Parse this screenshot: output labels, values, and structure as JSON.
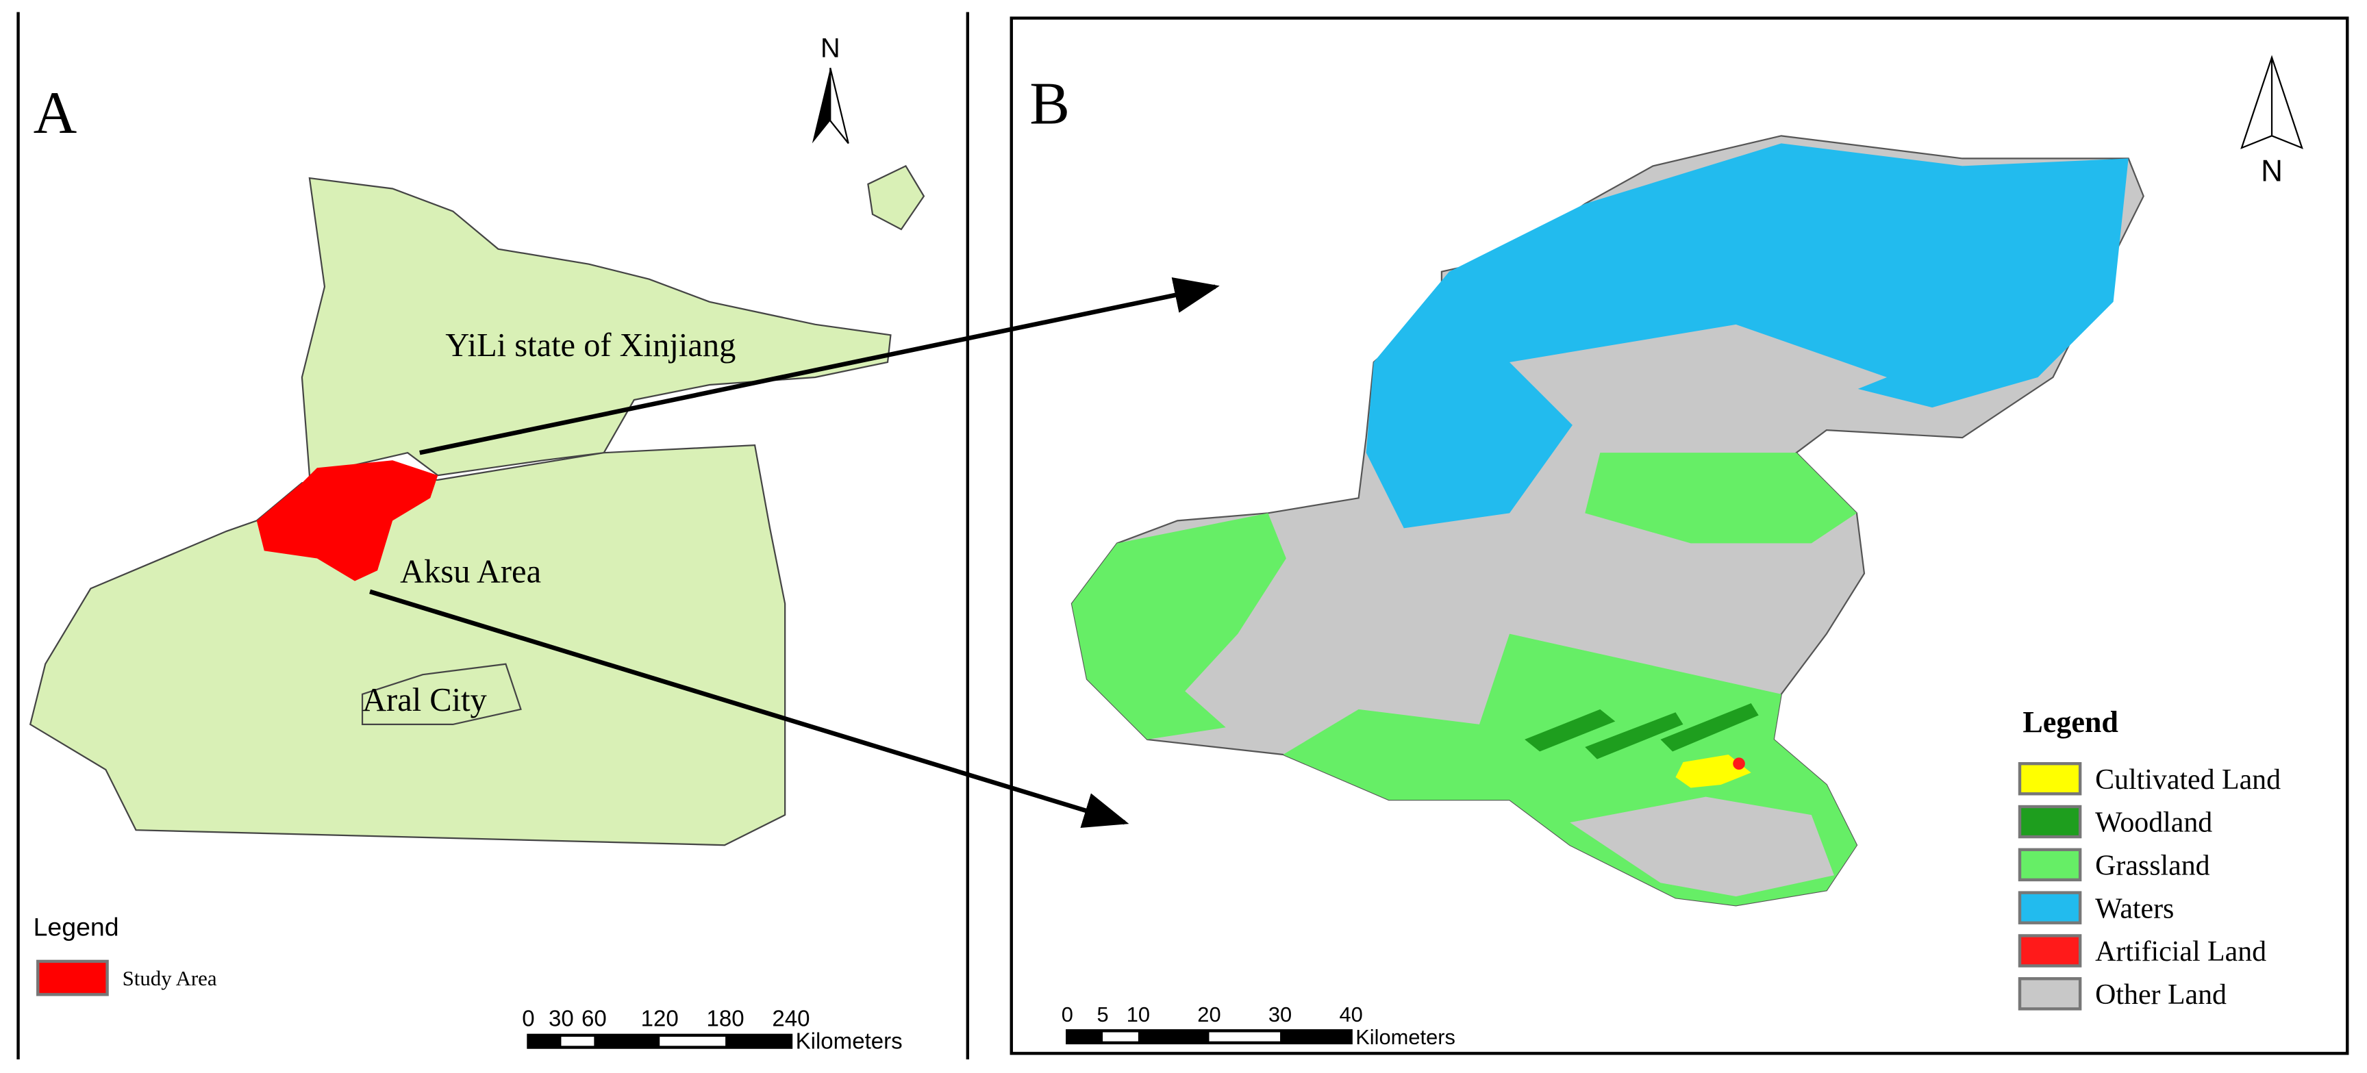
{
  "panel_a": {
    "label": "A",
    "north": "N",
    "regions": [
      "YiLi state of Xinjiang",
      "Aksu Area",
      "Aral City"
    ],
    "legend": {
      "title": "Legend",
      "items": [
        {
          "name": "Study Area",
          "color": "#ff0000"
        }
      ]
    },
    "scale": {
      "ticks": [
        0,
        30,
        60,
        120,
        180,
        240
      ],
      "unit": "Kilometers"
    }
  },
  "panel_b": {
    "label": "B",
    "north": "N",
    "legend": {
      "title": "Legend",
      "items": [
        {
          "name": "Cultivated Land",
          "color": "#ffff00"
        },
        {
          "name": "Woodland",
          "color": "#1e9e1e"
        },
        {
          "name": "Grassland",
          "color": "#66ee66"
        },
        {
          "name": "Waters",
          "color": "#22bbee"
        },
        {
          "name": "Artificial Land",
          "color": "#ff1a1a"
        },
        {
          "name": "Other Land",
          "color": "#c8c8c8"
        }
      ]
    },
    "scale": {
      "ticks": [
        0,
        5,
        10,
        20,
        30,
        40
      ],
      "unit": "Kilometers"
    }
  }
}
